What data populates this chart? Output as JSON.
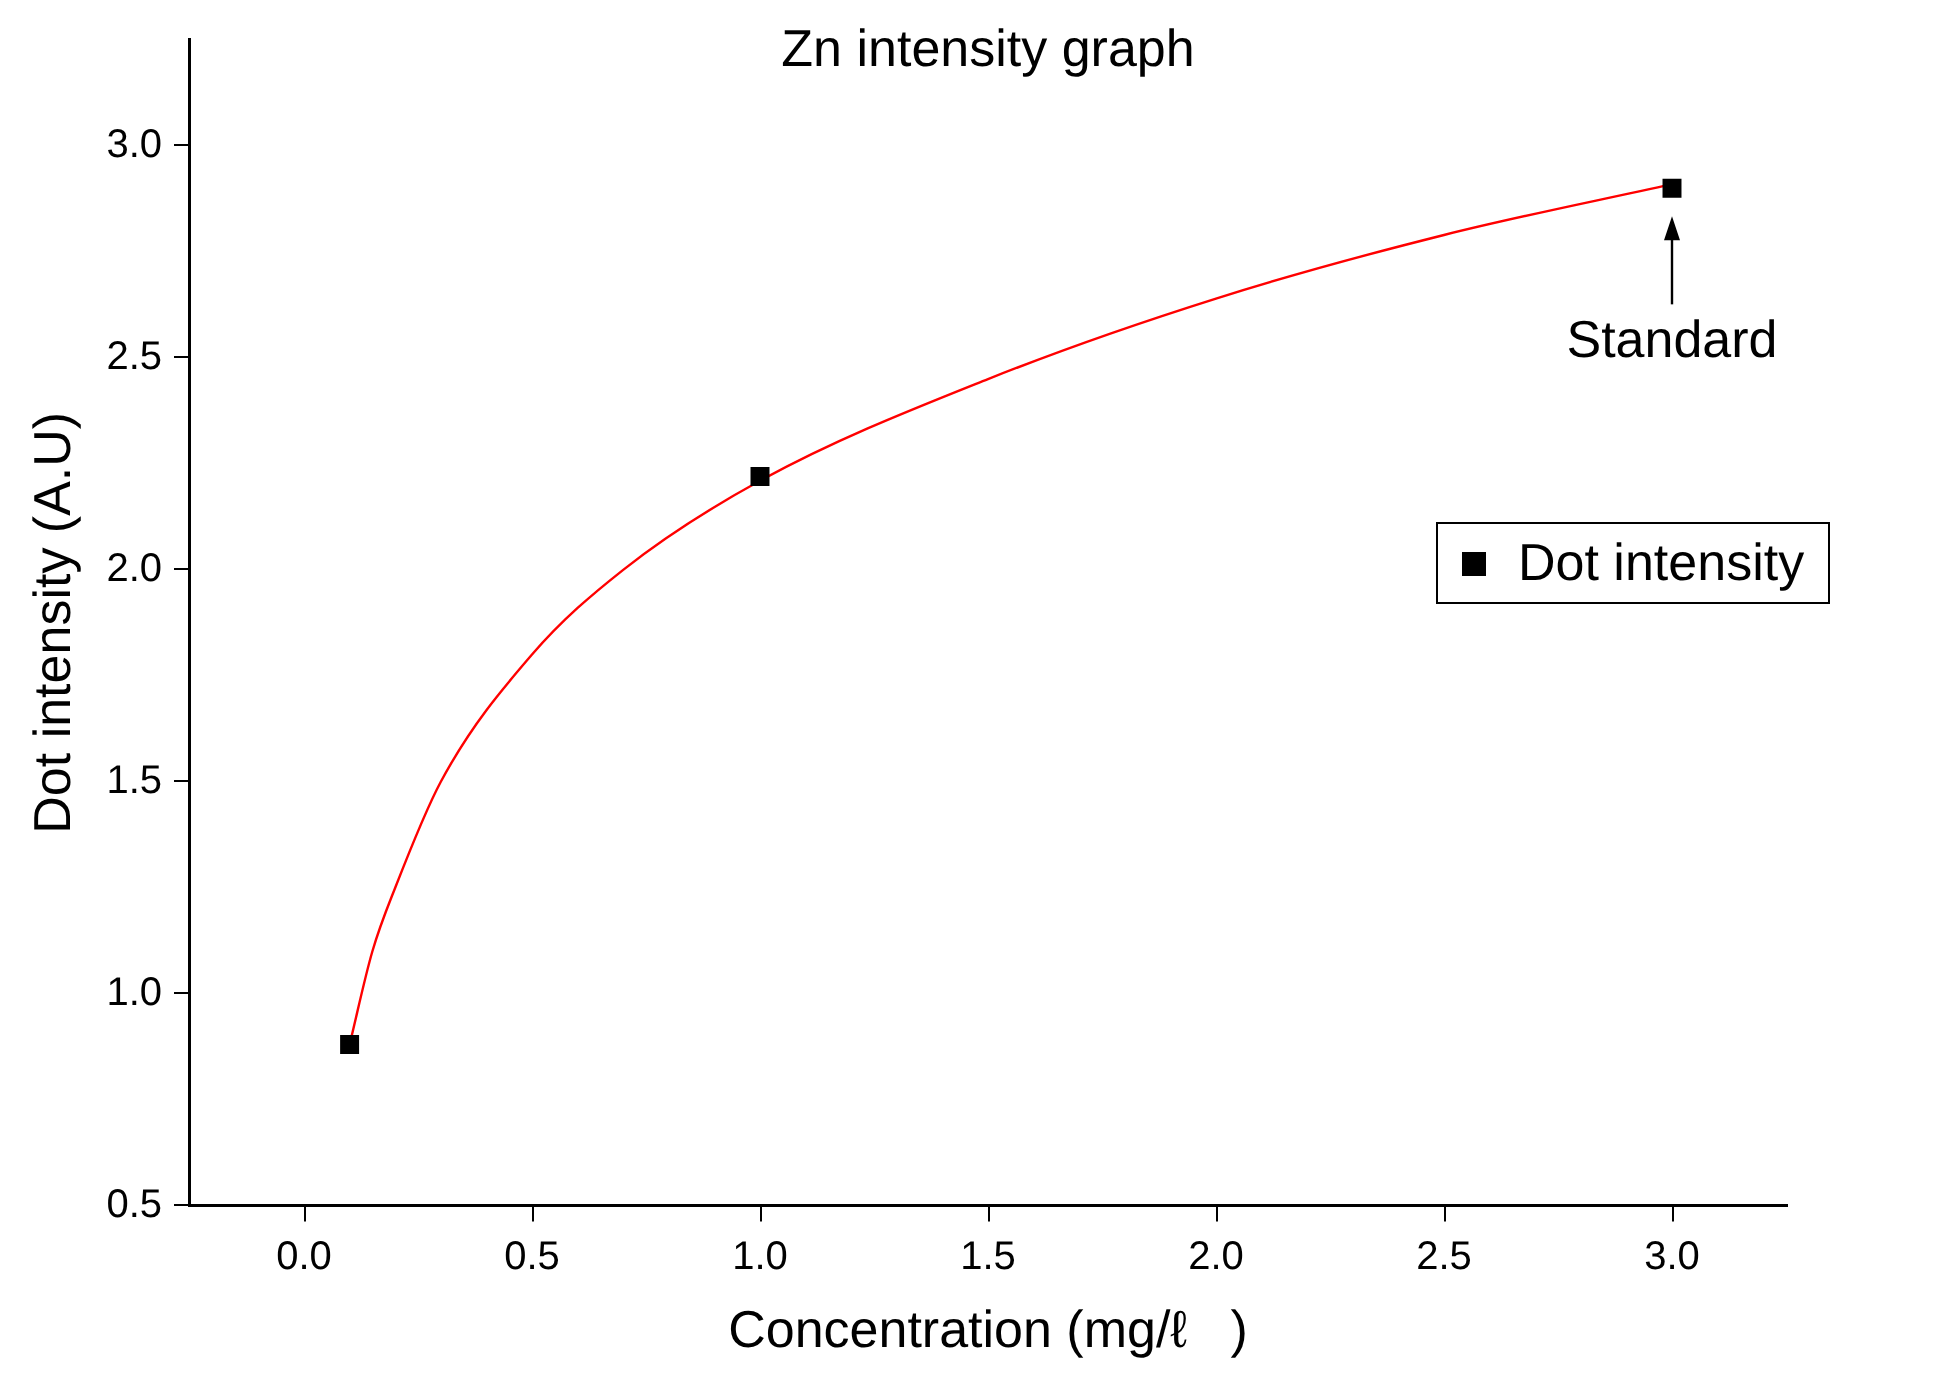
{
  "chart_data": {
    "type": "scatter",
    "title": "Zn intensity graph",
    "xlabel": "Concentration (mg/ℓ   )",
    "ylabel": "Dot intensity (A.U)",
    "series": [
      {
        "name": "Dot intensity",
        "type": "scatter",
        "color": "#000000",
        "marker": "square",
        "x": [
          0.1,
          1.0,
          3.0
        ],
        "values": [
          0.88,
          2.22,
          2.9
        ]
      },
      {
        "type": "line",
        "color": "#ff0000",
        "marker": "none",
        "x": [
          0.1,
          0.15,
          0.2,
          0.3,
          0.5,
          0.7,
          1.0,
          1.5,
          2.0,
          2.5,
          3.0
        ],
        "values": [
          0.88,
          1.1,
          1.25,
          1.5,
          1.8,
          2.0,
          2.21,
          2.45,
          2.64,
          2.79,
          2.91
        ]
      }
    ],
    "xlim": [
      -0.25,
      3.25
    ],
    "xticks": [
      {
        "value": 0,
        "label": "0.0"
      },
      0.5,
      {
        "value": 1,
        "label": "1.0"
      },
      1.5,
      {
        "value": 2,
        "label": "2.0"
      },
      2.5,
      {
        "value": 3,
        "label": "3.0"
      }
    ],
    "ylim": [
      0.5,
      3.25
    ],
    "yticks": [
      0.5,
      {
        "value": 1,
        "label": "1.0"
      },
      1.5,
      {
        "value": 2,
        "label": "2.0"
      },
      2.5,
      {
        "value": 3,
        "label": "3.0"
      }
    ],
    "grid": false,
    "legend": "right",
    "annotations": [
      {
        "text": "Standard",
        "x": 3.0,
        "y": 2.9
      }
    ]
  }
}
